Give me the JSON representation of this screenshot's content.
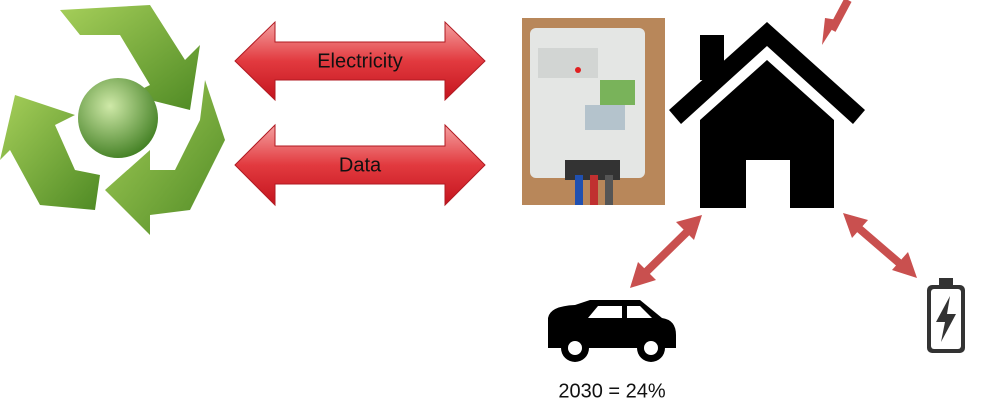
{
  "arrows": [
    {
      "label": "Electricity"
    },
    {
      "label": "Data"
    }
  ],
  "car": {
    "caption": "2030 = 24%"
  }
}
